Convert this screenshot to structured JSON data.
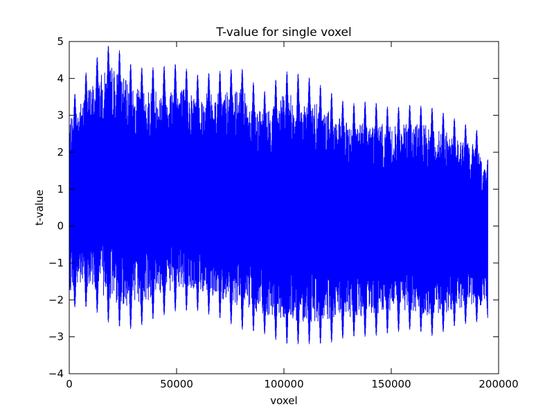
{
  "chart_data": {
    "type": "line",
    "title": "T-value for single voxel",
    "xlabel": "voxel",
    "ylabel": "t-value",
    "xlim": [
      0,
      200000
    ],
    "ylim": [
      -4,
      5
    ],
    "x_ticks": [
      0,
      50000,
      100000,
      150000,
      200000
    ],
    "x_tick_labels": [
      "0",
      "50000",
      "100000",
      "150000",
      "200000"
    ],
    "y_ticks": [
      -4,
      -3,
      -2,
      -1,
      0,
      1,
      2,
      3,
      4,
      5
    ],
    "y_tick_labels": [
      "−4",
      "−3",
      "−2",
      "−1",
      "0",
      "1",
      "2",
      "3",
      "4",
      "5"
    ],
    "grid": false,
    "legend": "none",
    "series": [
      {
        "color": "#0000ff",
        "x_range": [
          0,
          195000
        ],
        "envelope": {
          "x": [
            0,
            10000,
            20000,
            30000,
            40000,
            50000,
            60000,
            70000,
            80000,
            90000,
            100000,
            110000,
            120000,
            130000,
            140000,
            150000,
            160000,
            170000,
            180000,
            190000,
            195000
          ],
          "upper": [
            3.3,
            4.4,
            5.0,
            4.3,
            4.3,
            4.4,
            4.1,
            4.2,
            4.3,
            3.6,
            4.2,
            4.1,
            3.7,
            3.3,
            3.4,
            3.2,
            3.3,
            3.2,
            2.9,
            2.6,
            1.8
          ],
          "lower": [
            -2.2,
            -2.2,
            -2.7,
            -2.8,
            -2.5,
            -2.3,
            -2.3,
            -2.5,
            -2.8,
            -2.9,
            -3.2,
            -3.2,
            -3.2,
            -3.0,
            -3.0,
            -2.9,
            -2.8,
            -3.0,
            -2.7,
            -2.6,
            -2.5
          ]
        }
      }
    ]
  }
}
